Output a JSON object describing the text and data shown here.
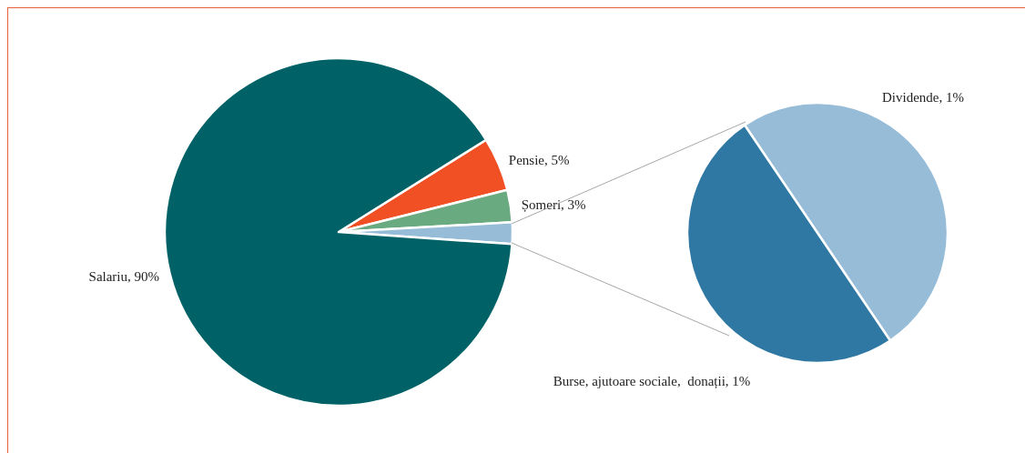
{
  "chart_data": [
    {
      "type": "pie",
      "categories": [
        "Pensie",
        "Șomeri",
        null,
        "Salariu"
      ],
      "values": [
        5,
        3,
        2,
        90
      ],
      "value_labels": [
        "5%",
        "3%",
        null,
        "90%"
      ],
      "colors": [
        "#f05023",
        "#6aaa80",
        "#96bcd7",
        "#006266"
      ]
    },
    {
      "type": "pie",
      "categories": [
        "Dividende",
        "Burse, ajutoare sociale,  donații"
      ],
      "values": [
        1,
        1
      ],
      "value_labels": [
        "1%",
        "1%"
      ],
      "colors": [
        "#96bcd7",
        "#2f78a3"
      ]
    }
  ]
}
